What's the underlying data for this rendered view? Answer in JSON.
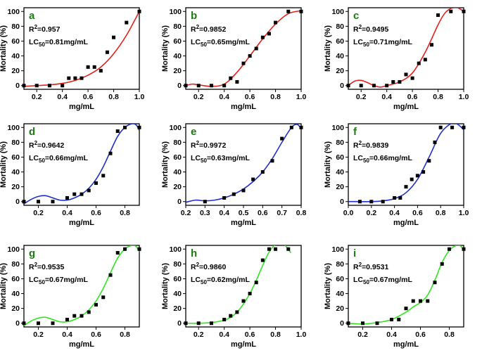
{
  "figure": {
    "title": ""
  },
  "colors": {
    "red": "#e4201c",
    "blue": "#1f2fc8",
    "green": "#2fe61f",
    "letter_green": "#1d7a12",
    "points": "#000000"
  },
  "chart_data": [
    {
      "type": "scatter",
      "letter": "a",
      "r2": "0.957",
      "lc50": "0.81mg/mL",
      "fit_color": "red",
      "xlabel": "mg/mL",
      "ylabel": "Mortality (%)",
      "xlim": [
        0.1,
        1.0
      ],
      "ylim": [
        -5,
        105
      ],
      "xticks": [
        "0.2",
        "0.4",
        "0.6",
        "0.8",
        "1.0"
      ],
      "yticks": [
        "0",
        "20",
        "40",
        "60",
        "80",
        "100"
      ],
      "points": [
        [
          0.1,
          0
        ],
        [
          0.2,
          0
        ],
        [
          0.3,
          0
        ],
        [
          0.4,
          0
        ],
        [
          0.45,
          10
        ],
        [
          0.5,
          10
        ],
        [
          0.55,
          10
        ],
        [
          0.6,
          25
        ],
        [
          0.65,
          25
        ],
        [
          0.7,
          20
        ],
        [
          0.75,
          45
        ],
        [
          0.8,
          65
        ],
        [
          0.9,
          85
        ],
        [
          1.0,
          100
        ]
      ],
      "fit": [
        [
          0.1,
          -1
        ],
        [
          0.2,
          0
        ],
        [
          0.3,
          1
        ],
        [
          0.4,
          3
        ],
        [
          0.5,
          7
        ],
        [
          0.6,
          14
        ],
        [
          0.7,
          25
        ],
        [
          0.8,
          43
        ],
        [
          0.9,
          68
        ],
        [
          1.0,
          100
        ]
      ]
    },
    {
      "type": "scatter",
      "letter": "b",
      "r2": "0.9852",
      "lc50": "0.65mg/mL",
      "fit_color": "red",
      "xlabel": "mg/mL",
      "ylabel": "Mortality (%)",
      "xlim": [
        0.1,
        1.0
      ],
      "ylim": [
        -5,
        105
      ],
      "xticks": [
        "0.2",
        "0.4",
        "0.6",
        "0.8",
        "1.0"
      ],
      "yticks": [
        "0",
        "20",
        "40",
        "60",
        "80",
        "100"
      ],
      "points": [
        [
          0.1,
          0
        ],
        [
          0.2,
          0
        ],
        [
          0.3,
          0
        ],
        [
          0.4,
          0
        ],
        [
          0.45,
          10
        ],
        [
          0.5,
          5
        ],
        [
          0.55,
          30
        ],
        [
          0.6,
          40
        ],
        [
          0.65,
          50
        ],
        [
          0.7,
          65
        ],
        [
          0.75,
          70
        ],
        [
          0.8,
          85
        ],
        [
          0.9,
          100
        ],
        [
          1.0,
          100
        ]
      ],
      "fit": [
        [
          0.1,
          0
        ],
        [
          0.15,
          2
        ],
        [
          0.2,
          1
        ],
        [
          0.3,
          -1
        ],
        [
          0.4,
          2
        ],
        [
          0.5,
          18
        ],
        [
          0.6,
          40
        ],
        [
          0.7,
          63
        ],
        [
          0.8,
          83
        ],
        [
          0.9,
          97
        ],
        [
          1.0,
          101
        ]
      ]
    },
    {
      "type": "scatter",
      "letter": "c",
      "r2": "0.9495",
      "lc50": "0.71mg/mL",
      "fit_color": "red",
      "xlabel": "mg/mL",
      "ylabel": "Mortality (%)",
      "xlim": [
        0.1,
        1.0
      ],
      "ylim": [
        -5,
        105
      ],
      "xticks": [
        "0.2",
        "0.4",
        "0.6",
        "0.8",
        "1.0"
      ],
      "yticks": [
        "0",
        "20",
        "40",
        "60",
        "80",
        "100"
      ],
      "points": [
        [
          0.1,
          0
        ],
        [
          0.2,
          0
        ],
        [
          0.3,
          0
        ],
        [
          0.4,
          0
        ],
        [
          0.45,
          5
        ],
        [
          0.5,
          5
        ],
        [
          0.55,
          15
        ],
        [
          0.6,
          10
        ],
        [
          0.65,
          30
        ],
        [
          0.7,
          35
        ],
        [
          0.75,
          55
        ],
        [
          0.8,
          95
        ],
        [
          0.9,
          100
        ],
        [
          1.0,
          100
        ]
      ],
      "fit": [
        [
          0.1,
          0
        ],
        [
          0.15,
          6
        ],
        [
          0.2,
          7
        ],
        [
          0.25,
          4
        ],
        [
          0.3,
          0
        ],
        [
          0.35,
          -2
        ],
        [
          0.4,
          0
        ],
        [
          0.5,
          5
        ],
        [
          0.6,
          17
        ],
        [
          0.7,
          45
        ],
        [
          0.8,
          82
        ],
        [
          0.85,
          97
        ],
        [
          0.9,
          104
        ],
        [
          0.95,
          105
        ],
        [
          1.0,
          100
        ]
      ]
    },
    {
      "type": "scatter",
      "letter": "d",
      "r2": "0.9642",
      "lc50": "0.66mg/mL",
      "fit_color": "blue",
      "xlabel": "mg/mL",
      "ylabel": "Mortality (%)",
      "xlim": [
        0.1,
        0.9
      ],
      "ylim": [
        -5,
        105
      ],
      "xticks": [
        "0.2",
        "0.4",
        "0.6",
        "0.8"
      ],
      "yticks": [
        "0",
        "20",
        "40",
        "60",
        "80",
        "100"
      ],
      "points": [
        [
          0.1,
          0
        ],
        [
          0.2,
          0
        ],
        [
          0.3,
          0
        ],
        [
          0.4,
          5
        ],
        [
          0.45,
          10
        ],
        [
          0.5,
          10
        ],
        [
          0.55,
          15
        ],
        [
          0.6,
          25
        ],
        [
          0.65,
          35
        ],
        [
          0.7,
          65
        ],
        [
          0.75,
          95
        ],
        [
          0.8,
          100
        ],
        [
          0.9,
          100
        ]
      ],
      "fit": [
        [
          0.1,
          -3
        ],
        [
          0.15,
          3
        ],
        [
          0.2,
          7
        ],
        [
          0.25,
          8
        ],
        [
          0.3,
          5
        ],
        [
          0.35,
          2
        ],
        [
          0.4,
          2
        ],
        [
          0.45,
          5
        ],
        [
          0.5,
          10
        ],
        [
          0.55,
          18
        ],
        [
          0.6,
          30
        ],
        [
          0.65,
          47
        ],
        [
          0.7,
          68
        ],
        [
          0.75,
          88
        ],
        [
          0.8,
          100
        ],
        [
          0.85,
          105
        ],
        [
          0.88,
          103
        ],
        [
          0.9,
          96
        ]
      ]
    },
    {
      "type": "scatter",
      "letter": "e",
      "r2": "0.9972",
      "lc50": "0.63mg/mL",
      "fit_color": "blue",
      "xlabel": "mg/mL",
      "ylabel": "Mortality (%)",
      "xlim": [
        0.2,
        0.8
      ],
      "ylim": [
        -5,
        105
      ],
      "xticks": [
        "0.2",
        "0.3",
        "0.4",
        "0.5",
        "0.6",
        "0.7",
        "0.8"
      ],
      "yticks": [
        "0",
        "20",
        "40",
        "60",
        "80",
        "100"
      ],
      "points": [
        [
          0.3,
          0
        ],
        [
          0.4,
          5
        ],
        [
          0.45,
          10
        ],
        [
          0.5,
          15
        ],
        [
          0.55,
          30
        ],
        [
          0.6,
          40
        ],
        [
          0.65,
          55
        ],
        [
          0.7,
          85
        ],
        [
          0.75,
          100
        ],
        [
          0.8,
          100
        ]
      ],
      "fit": [
        [
          0.2,
          -1
        ],
        [
          0.25,
          2
        ],
        [
          0.3,
          1
        ],
        [
          0.35,
          2
        ],
        [
          0.4,
          5
        ],
        [
          0.45,
          10
        ],
        [
          0.5,
          17
        ],
        [
          0.55,
          27
        ],
        [
          0.6,
          40
        ],
        [
          0.65,
          58
        ],
        [
          0.7,
          80
        ],
        [
          0.75,
          100
        ],
        [
          0.78,
          104
        ],
        [
          0.8,
          98
        ]
      ]
    },
    {
      "type": "scatter",
      "letter": "f",
      "r2": "0.9839",
      "lc50": "0.66mg/mL",
      "fit_color": "blue",
      "xlabel": "mg/mL",
      "ylabel": "Mortality (%)",
      "xlim": [
        0.0,
        1.0
      ],
      "ylim": [
        -5,
        105
      ],
      "xticks": [
        "0.0",
        "0.2",
        "0.4",
        "0.6",
        "0.8",
        "1.0"
      ],
      "yticks": [
        "0",
        "20",
        "40",
        "60",
        "80",
        "100"
      ],
      "points": [
        [
          0.1,
          0
        ],
        [
          0.2,
          0
        ],
        [
          0.3,
          0
        ],
        [
          0.4,
          5
        ],
        [
          0.45,
          5
        ],
        [
          0.5,
          20
        ],
        [
          0.55,
          30
        ],
        [
          0.6,
          35
        ],
        [
          0.65,
          40
        ],
        [
          0.7,
          55
        ],
        [
          0.75,
          80
        ],
        [
          0.8,
          100
        ],
        [
          0.9,
          100
        ],
        [
          1.0,
          100
        ]
      ],
      "fit": [
        [
          0.0,
          0
        ],
        [
          0.1,
          0
        ],
        [
          0.2,
          0
        ],
        [
          0.3,
          1
        ],
        [
          0.4,
          4
        ],
        [
          0.5,
          12
        ],
        [
          0.6,
          30
        ],
        [
          0.7,
          60
        ],
        [
          0.8,
          92
        ],
        [
          0.9,
          106
        ],
        [
          0.95,
          104
        ],
        [
          1.0,
          97
        ]
      ]
    },
    {
      "type": "scatter",
      "letter": "g",
      "r2": "0.9535",
      "lc50": "0.67mg/mL",
      "fit_color": "green",
      "xlabel": "mg/mL",
      "ylabel": "Mortality (%)",
      "xlim": [
        0.1,
        0.9
      ],
      "ylim": [
        -5,
        105
      ],
      "xticks": [
        "0.2",
        "0.4",
        "0.6",
        "0.8"
      ],
      "yticks": [
        "0",
        "20",
        "40",
        "60",
        "80",
        "100"
      ],
      "points": [
        [
          0.1,
          0
        ],
        [
          0.2,
          0
        ],
        [
          0.3,
          0
        ],
        [
          0.4,
          5
        ],
        [
          0.45,
          10
        ],
        [
          0.5,
          10
        ],
        [
          0.55,
          15
        ],
        [
          0.6,
          25
        ],
        [
          0.65,
          35
        ],
        [
          0.7,
          65
        ],
        [
          0.75,
          95
        ],
        [
          0.8,
          100
        ],
        [
          0.9,
          100
        ]
      ],
      "fit": [
        [
          0.1,
          -3
        ],
        [
          0.15,
          3
        ],
        [
          0.2,
          7
        ],
        [
          0.25,
          8
        ],
        [
          0.3,
          5
        ],
        [
          0.35,
          2
        ],
        [
          0.4,
          2
        ],
        [
          0.45,
          5
        ],
        [
          0.5,
          10
        ],
        [
          0.55,
          18
        ],
        [
          0.6,
          30
        ],
        [
          0.65,
          47
        ],
        [
          0.7,
          68
        ],
        [
          0.75,
          88
        ],
        [
          0.8,
          100
        ],
        [
          0.85,
          105
        ],
        [
          0.88,
          103
        ],
        [
          0.9,
          96
        ]
      ]
    },
    {
      "type": "scatter",
      "letter": "h",
      "r2": "0.9860",
      "lc50": "0.62mg/mL",
      "fit_color": "green",
      "xlabel": "mg/mL",
      "ylabel": "Mortality (%)",
      "xlim": [
        0.1,
        1.0
      ],
      "ylim": [
        -5,
        105
      ],
      "xticks": [
        "0.2",
        "0.4",
        "0.6",
        "0.8",
        "1.0"
      ],
      "yticks": [
        "0",
        "20",
        "40",
        "60",
        "80",
        "100"
      ],
      "points": [
        [
          0.1,
          0
        ],
        [
          0.2,
          0
        ],
        [
          0.3,
          0
        ],
        [
          0.4,
          5
        ],
        [
          0.45,
          10
        ],
        [
          0.5,
          15
        ],
        [
          0.55,
          30
        ],
        [
          0.6,
          40
        ],
        [
          0.65,
          55
        ],
        [
          0.7,
          85
        ],
        [
          0.75,
          100
        ],
        [
          0.8,
          100
        ],
        [
          0.9,
          100
        ]
      ],
      "fit": [
        [
          0.1,
          0
        ],
        [
          0.2,
          0
        ],
        [
          0.3,
          1
        ],
        [
          0.4,
          4
        ],
        [
          0.45,
          8
        ],
        [
          0.5,
          15
        ],
        [
          0.55,
          26
        ],
        [
          0.6,
          40
        ],
        [
          0.65,
          58
        ],
        [
          0.7,
          78
        ],
        [
          0.75,
          96
        ],
        [
          0.8,
          106
        ],
        [
          0.85,
          108
        ],
        [
          0.88,
          104
        ],
        [
          0.92,
          95
        ]
      ]
    },
    {
      "type": "scatter",
      "letter": "i",
      "r2": "0.9531",
      "lc50": "0.67mg/mL",
      "fit_color": "green",
      "xlabel": "mg/mL",
      "ylabel": "Mortality (%)",
      "xlim": [
        0.1,
        0.9
      ],
      "ylim": [
        -5,
        105
      ],
      "xticks": [
        "0.2",
        "0.4",
        "0.6",
        "0.8"
      ],
      "yticks": [
        "0",
        "20",
        "40",
        "60",
        "80",
        "100"
      ],
      "points": [
        [
          0.1,
          0
        ],
        [
          0.2,
          0
        ],
        [
          0.3,
          0
        ],
        [
          0.4,
          5
        ],
        [
          0.45,
          5
        ],
        [
          0.5,
          20
        ],
        [
          0.55,
          30
        ],
        [
          0.6,
          30
        ],
        [
          0.65,
          30
        ],
        [
          0.7,
          55
        ],
        [
          0.75,
          80
        ],
        [
          0.8,
          100
        ],
        [
          0.9,
          100
        ]
      ],
      "fit": [
        [
          0.1,
          0
        ],
        [
          0.2,
          -1
        ],
        [
          0.3,
          1
        ],
        [
          0.4,
          5
        ],
        [
          0.5,
          15
        ],
        [
          0.55,
          22
        ],
        [
          0.6,
          28
        ],
        [
          0.65,
          38
        ],
        [
          0.7,
          58
        ],
        [
          0.75,
          82
        ],
        [
          0.8,
          98
        ],
        [
          0.85,
          105
        ],
        [
          0.88,
          104
        ],
        [
          0.9,
          98
        ]
      ]
    }
  ]
}
